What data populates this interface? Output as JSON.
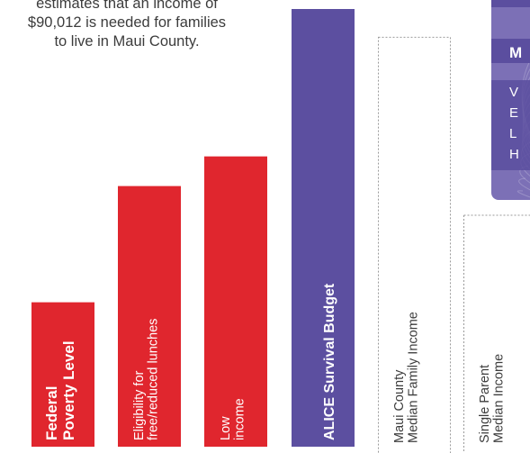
{
  "intro_text": [
    "estimates that an income of",
    "$90,012 is needed for families",
    "to live in Maui County."
  ],
  "colors": {
    "red": "#e0262e",
    "purple": "#5c4fa0",
    "outline": "#9a9a9a",
    "text_dark": "#3c3c3c",
    "text_light": "#ffffff",
    "inset_bg": "#7c70b6",
    "inset_band": "#5b4e9f"
  },
  "inset": {
    "glyphs": [
      "M",
      "V",
      "E",
      "L",
      "H"
    ]
  },
  "chart_data": {
    "type": "bar",
    "categories": [
      "Federal Poverty Level",
      "Eligibility for free/reduced lunches",
      "Low income",
      "ALICE Survival Budget",
      "Maui County Median Family Income",
      "Single Parent Median Income"
    ],
    "values": [
      29.7,
      53.6,
      59.7,
      90.012,
      84.2,
      47.6
    ],
    "unit": "$ thousands",
    "bars": [
      {
        "lines": [
          "Federal",
          "Poverty Level"
        ],
        "bold": true,
        "style": "red",
        "value": 29.7
      },
      {
        "lines": [
          "Eligibility for",
          "free/reduced lunches"
        ],
        "bold": false,
        "style": "red",
        "value": 53.6
      },
      {
        "lines": [
          "Low",
          "income"
        ],
        "bold": false,
        "style": "red",
        "value": 59.7
      },
      {
        "lines": [
          "ALICE Survival Budget"
        ],
        "bold": true,
        "style": "purple",
        "value": 90.012
      },
      {
        "lines": [
          "Maui County",
          "Median Family Income"
        ],
        "bold": false,
        "style": "outline",
        "value": 84.2
      },
      {
        "lines": [
          "Single Parent",
          "Median Income"
        ],
        "bold": false,
        "style": "outline",
        "value": 47.6
      }
    ]
  }
}
